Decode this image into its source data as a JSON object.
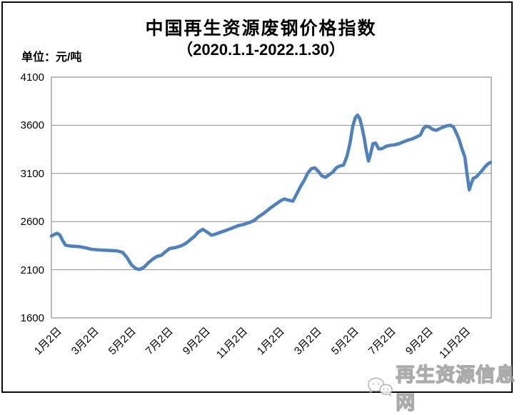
{
  "chart": {
    "title": "中国再生资源废钢价格指数",
    "subtitle": "（2020.1.1-2022.1.30）",
    "unit_label": "单位：元/吨",
    "watermark": "再生资源信息网"
  },
  "chart_data": {
    "type": "line",
    "title": "中国再生资源废钢价格指数",
    "subtitle": "（2020.1.1-2022.1.30）",
    "ylabel": "元/吨",
    "xlabel": "",
    "ylim": [
      1600,
      4100
    ],
    "y_ticks": [
      4100,
      3600,
      3100,
      2600,
      2100,
      1600
    ],
    "x_tick_labels": [
      "1月2日",
      "3月2日",
      "5月2日",
      "7月2日",
      "9月2日",
      "11月2日",
      "1月2日",
      "3月2日",
      "5月2日",
      "7月2日",
      "9月2日",
      "11月2日"
    ],
    "grid": "horizontal-on",
    "legend": "none",
    "line_color": "#4F81BD",
    "grid_color": "#8e8e8e",
    "series": [
      {
        "name": "废钢价格指数",
        "x_unit": "fraction-of-axis (2020.1.1 → 2022.1.30)",
        "points": [
          [
            0.0,
            2450
          ],
          [
            0.006,
            2465
          ],
          [
            0.013,
            2478
          ],
          [
            0.019,
            2462
          ],
          [
            0.026,
            2400
          ],
          [
            0.032,
            2355
          ],
          [
            0.045,
            2345
          ],
          [
            0.062,
            2340
          ],
          [
            0.078,
            2328
          ],
          [
            0.091,
            2312
          ],
          [
            0.11,
            2305
          ],
          [
            0.13,
            2300
          ],
          [
            0.149,
            2296
          ],
          [
            0.162,
            2280
          ],
          [
            0.172,
            2225
          ],
          [
            0.182,
            2150
          ],
          [
            0.192,
            2112
          ],
          [
            0.201,
            2103
          ],
          [
            0.211,
            2128
          ],
          [
            0.221,
            2175
          ],
          [
            0.231,
            2212
          ],
          [
            0.24,
            2238
          ],
          [
            0.25,
            2250
          ],
          [
            0.26,
            2290
          ],
          [
            0.269,
            2320
          ],
          [
            0.282,
            2330
          ],
          [
            0.295,
            2348
          ],
          [
            0.305,
            2372
          ],
          [
            0.315,
            2408
          ],
          [
            0.325,
            2445
          ],
          [
            0.334,
            2490
          ],
          [
            0.344,
            2520
          ],
          [
            0.354,
            2490
          ],
          [
            0.364,
            2458
          ],
          [
            0.373,
            2470
          ],
          [
            0.386,
            2492
          ],
          [
            0.399,
            2512
          ],
          [
            0.412,
            2535
          ],
          [
            0.425,
            2558
          ],
          [
            0.438,
            2572
          ],
          [
            0.451,
            2592
          ],
          [
            0.461,
            2612
          ],
          [
            0.471,
            2650
          ],
          [
            0.481,
            2680
          ],
          [
            0.49,
            2712
          ],
          [
            0.5,
            2748
          ],
          [
            0.51,
            2780
          ],
          [
            0.519,
            2810
          ],
          [
            0.529,
            2835
          ],
          [
            0.539,
            2822
          ],
          [
            0.549,
            2812
          ],
          [
            0.558,
            2890
          ],
          [
            0.567,
            2970
          ],
          [
            0.575,
            3030
          ],
          [
            0.583,
            3105
          ],
          [
            0.591,
            3150
          ],
          [
            0.599,
            3158
          ],
          [
            0.607,
            3120
          ],
          [
            0.615,
            3075
          ],
          [
            0.623,
            3060
          ],
          [
            0.631,
            3085
          ],
          [
            0.64,
            3115
          ],
          [
            0.648,
            3160
          ],
          [
            0.656,
            3178
          ],
          [
            0.664,
            3185
          ],
          [
            0.672,
            3280
          ],
          [
            0.679,
            3420
          ],
          [
            0.685,
            3590
          ],
          [
            0.691,
            3680
          ],
          [
            0.696,
            3705
          ],
          [
            0.701,
            3670
          ],
          [
            0.706,
            3580
          ],
          [
            0.711,
            3470
          ],
          [
            0.716,
            3330
          ],
          [
            0.721,
            3228
          ],
          [
            0.726,
            3310
          ],
          [
            0.731,
            3410
          ],
          [
            0.737,
            3415
          ],
          [
            0.744,
            3355
          ],
          [
            0.752,
            3358
          ],
          [
            0.761,
            3382
          ],
          [
            0.771,
            3392
          ],
          [
            0.781,
            3398
          ],
          [
            0.791,
            3410
          ],
          [
            0.8,
            3428
          ],
          [
            0.81,
            3445
          ],
          [
            0.82,
            3458
          ],
          [
            0.83,
            3478
          ],
          [
            0.839,
            3500
          ],
          [
            0.846,
            3568
          ],
          [
            0.852,
            3590
          ],
          [
            0.859,
            3582
          ],
          [
            0.867,
            3556
          ],
          [
            0.875,
            3548
          ],
          [
            0.883,
            3565
          ],
          [
            0.891,
            3582
          ],
          [
            0.899,
            3595
          ],
          [
            0.907,
            3600
          ],
          [
            0.914,
            3582
          ],
          [
            0.92,
            3525
          ],
          [
            0.927,
            3450
          ],
          [
            0.933,
            3360
          ],
          [
            0.94,
            3270
          ],
          [
            0.945,
            3090
          ],
          [
            0.95,
            2930
          ],
          [
            0.954,
            2990
          ],
          [
            0.959,
            3048
          ],
          [
            0.966,
            3065
          ],
          [
            0.972,
            3095
          ],
          [
            0.979,
            3130
          ],
          [
            0.985,
            3165
          ],
          [
            0.992,
            3198
          ],
          [
            0.998,
            3215
          ]
        ]
      }
    ]
  }
}
